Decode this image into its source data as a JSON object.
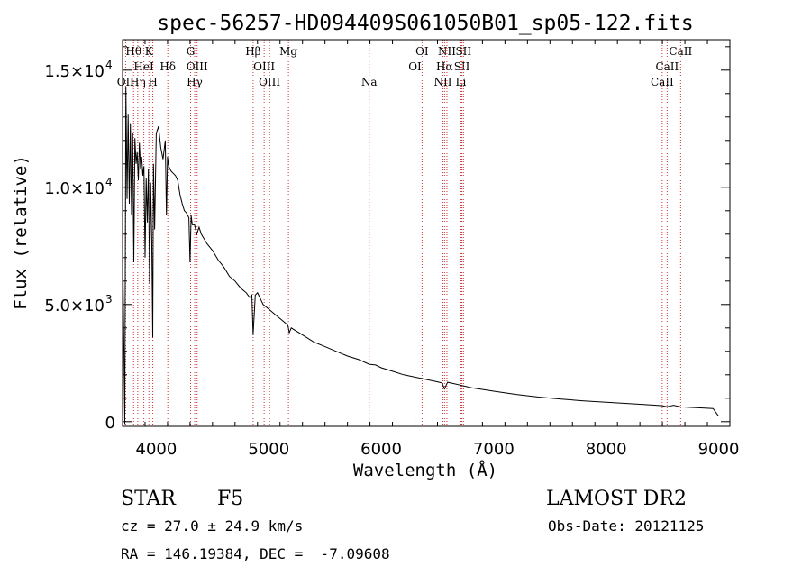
{
  "chart_data": {
    "type": "line",
    "title": "spec-56257-HD094409S061050B01_sp05-122.fits",
    "xlabel": "Wavelength (Å)",
    "ylabel": "Flux (relative)",
    "xlim": [
      3700,
      9100
    ],
    "ylim": [
      -200,
      16300
    ],
    "x_ticks": [
      {
        "value": 4000,
        "label": "4000"
      },
      {
        "value": 5000,
        "label": "5000"
      },
      {
        "value": 6000,
        "label": "6000"
      },
      {
        "value": 7000,
        "label": "7000"
      },
      {
        "value": 8000,
        "label": "8000"
      },
      {
        "value": 9000,
        "label": "9000"
      }
    ],
    "y_ticks": [
      {
        "value": 0,
        "label": "0",
        "exp": ""
      },
      {
        "value": 5000,
        "label": "5.0×10",
        "exp": "3"
      },
      {
        "value": 10000,
        "label": "1.0×10",
        "exp": "4"
      },
      {
        "value": 15000,
        "label": "1.5×10",
        "exp": "4"
      }
    ],
    "series": [
      {
        "x": [
          3705,
          3720,
          3730,
          3740,
          3750,
          3760,
          3770,
          3780,
          3790,
          3800,
          3810,
          3820,
          3830,
          3840,
          3850,
          3860,
          3870,
          3880,
          3890,
          3900,
          3910,
          3920,
          3930,
          3940,
          3950,
          3960,
          3968,
          3975,
          3985,
          4000,
          4020,
          4040,
          4060,
          4080,
          4090,
          4100,
          4110,
          4130,
          4150,
          4170,
          4190,
          4210,
          4230,
          4250,
          4270,
          4290,
          4300,
          4310,
          4320,
          4340,
          4360,
          4380,
          4400,
          4450,
          4500,
          4550,
          4600,
          4650,
          4700,
          4750,
          4800,
          4830,
          4850,
          4861,
          4880,
          4900,
          4950,
          5000,
          5050,
          5100,
          5150,
          5170,
          5183,
          5200,
          5300,
          5400,
          5500,
          5600,
          5700,
          5800,
          5893,
          5950,
          6000,
          6100,
          6200,
          6300,
          6400,
          6500,
          6540,
          6563,
          6590,
          6650,
          6800,
          7000,
          7200,
          7400,
          7600,
          7800,
          8000,
          8200,
          8400,
          8500,
          8540,
          8600,
          8660,
          8800,
          8950,
          9000
        ],
        "y": [
          6000,
          -100,
          14300,
          9500,
          13100,
          9300,
          12700,
          8800,
          12300,
          6800,
          12100,
          11000,
          11500,
          10300,
          11900,
          10800,
          11300,
          10500,
          10900,
          7000,
          10400,
          8500,
          10800,
          5900,
          10200,
          7500,
          3600,
          11000,
          8200,
          12300,
          12600,
          11700,
          11200,
          12000,
          8800,
          11300,
          10900,
          10700,
          10600,
          10500,
          10300,
          9700,
          9300,
          9000,
          8900,
          8700,
          6800,
          8800,
          8400,
          8400,
          8000,
          8300,
          8000,
          7600,
          7300,
          6900,
          6600,
          6200,
          6000,
          5700,
          5500,
          5300,
          5400,
          3700,
          5400,
          5500,
          5000,
          4800,
          4600,
          4400,
          4200,
          4100,
          3800,
          4000,
          3700,
          3400,
          3200,
          3000,
          2800,
          2650,
          2450,
          2420,
          2300,
          2150,
          2000,
          1900,
          1800,
          1700,
          1650,
          1400,
          1680,
          1620,
          1450,
          1300,
          1160,
          1050,
          960,
          890,
          830,
          770,
          710,
          680,
          640,
          700,
          630,
          600,
          560,
          230
        ]
      }
    ],
    "spectral_lines": [
      {
        "label": "Hθ",
        "wavelength": 3798,
        "row": 1
      },
      {
        "label": "OII",
        "wavelength": 3727,
        "row": 3
      },
      {
        "label": "Hη",
        "wavelength": 3835,
        "row": 3
      },
      {
        "label": "HeI",
        "wavelength": 3889,
        "row": 2
      },
      {
        "label": "K",
        "wavelength": 3934,
        "row": 1
      },
      {
        "label": "H",
        "wavelength": 3969,
        "row": 3
      },
      {
        "label": "Hδ",
        "wavelength": 4102,
        "row": 2
      },
      {
        "label": "G",
        "wavelength": 4305,
        "row": 1
      },
      {
        "label": "OIII",
        "wavelength": 4363,
        "row": 2
      },
      {
        "label": "Hγ",
        "wavelength": 4341,
        "row": 3
      },
      {
        "label": "Hβ",
        "wavelength": 4861,
        "row": 1
      },
      {
        "label": "OIII",
        "wavelength": 4959,
        "row": 2
      },
      {
        "label": "OIII",
        "wavelength": 5007,
        "row": 3
      },
      {
        "label": "Mg",
        "wavelength": 5175,
        "row": 1
      },
      {
        "label": "Na",
        "wavelength": 5893,
        "row": 3
      },
      {
        "label": "OI",
        "wavelength": 6300,
        "row": 2
      },
      {
        "label": "OI",
        "wavelength": 6363,
        "row": 1
      },
      {
        "label": "NII",
        "wavelength": 6548,
        "row": 3
      },
      {
        "label": "NII",
        "wavelength": 6584,
        "row": 1
      },
      {
        "label": "Hα",
        "wavelength": 6563,
        "row": 2
      },
      {
        "label": "Li",
        "wavelength": 6708,
        "row": 3
      },
      {
        "label": "SII",
        "wavelength": 6717,
        "row": 2
      },
      {
        "label": "SII",
        "wavelength": 6731,
        "row": 1
      },
      {
        "label": "CaII",
        "wavelength": 8498,
        "row": 3
      },
      {
        "label": "CaII",
        "wavelength": 8542,
        "row": 2
      },
      {
        "label": "CaII",
        "wavelength": 8662,
        "row": 1
      }
    ]
  },
  "info": {
    "object_class": "STAR",
    "subclass": "F5",
    "survey": "LAMOST DR2",
    "redshift": "cz = 27.0 ± 24.9 km/s",
    "obs_date": "Obs-Date: 20121125",
    "coords": "RA = 146.19384, DEC =  -7.09608"
  }
}
